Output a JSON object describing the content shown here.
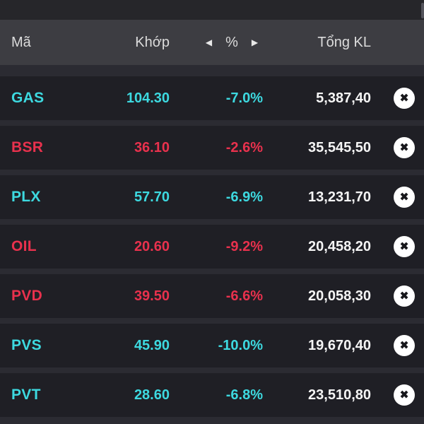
{
  "colors": {
    "floor_cyan": "#3dd9e0",
    "down_red": "#e8314d",
    "header_background": "#3d3d42",
    "row_background": "#1f1f25",
    "page_background": "#2b2b32",
    "volume_text": "#f5f5f5"
  },
  "header": {
    "col_symbol": "Mã",
    "col_matched_price": "Khớp",
    "col_percent": "%",
    "col_total_volume": "Tổng KL",
    "prev_arrow": "◀",
    "next_arrow": "▶"
  },
  "close_icon_glyph": "✖",
  "rows": [
    {
      "symbol": "GAS",
      "price": "104.30",
      "pct": "-7.0%",
      "volume": "5,387,40",
      "trend": "floor"
    },
    {
      "symbol": "BSR",
      "price": "36.10",
      "pct": "-2.6%",
      "volume": "35,545,50",
      "trend": "down"
    },
    {
      "symbol": "PLX",
      "price": "57.70",
      "pct": "-6.9%",
      "volume": "13,231,70",
      "trend": "floor"
    },
    {
      "symbol": "OIL",
      "price": "20.60",
      "pct": "-9.2%",
      "volume": "20,458,20",
      "trend": "down"
    },
    {
      "symbol": "PVD",
      "price": "39.50",
      "pct": "-6.6%",
      "volume": "20,058,30",
      "trend": "down"
    },
    {
      "symbol": "PVS",
      "price": "45.90",
      "pct": "-10.0%",
      "volume": "19,670,40",
      "trend": "floor"
    },
    {
      "symbol": "PVT",
      "price": "28.60",
      "pct": "-6.8%",
      "volume": "23,510,80",
      "trend": "floor"
    }
  ]
}
